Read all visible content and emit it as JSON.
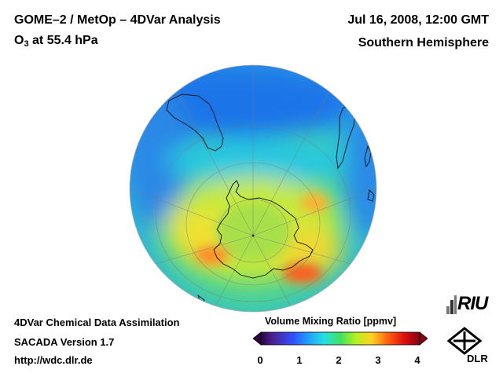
{
  "header": {
    "title_line1": "GOME–2 / MetOp – 4DVar Analysis",
    "species_O": "O",
    "species_sub": "3",
    "species_rest": " at 55.4 hPa",
    "date": "Jul 16, 2008, 12:00 GMT",
    "hemisphere": "Southern Hemisphere"
  },
  "footer": {
    "line1": "4DVar Chemical Data Assimilation",
    "line2": "SACADA Version 1.7",
    "line3": "http://wdc.dlr.de"
  },
  "colorbar": {
    "title": "Volume Mixing Ratio [ppmv]",
    "ticks": [
      "0",
      "1",
      "2",
      "3",
      "4"
    ],
    "colors": [
      "#2a0040",
      "#3b2bd6",
      "#1e5bff",
      "#20c8f0",
      "#40e070",
      "#d8f020",
      "#ffb020",
      "#ff3010",
      "#c80018",
      "#7a0010"
    ]
  },
  "logos": {
    "riu": "RIU",
    "dlr": "DLR"
  },
  "map_colors": {
    "ocean_low": "#1e78e6",
    "mid": "#46d27a",
    "high": "#f0e830",
    "hot": "#ff5a1e"
  }
}
